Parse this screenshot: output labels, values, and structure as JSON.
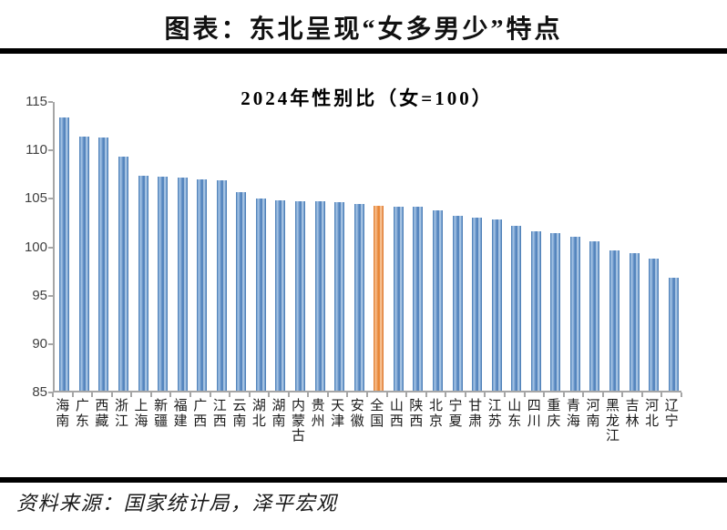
{
  "header": {
    "title": "图表：东北呈现“女多男少”特点"
  },
  "chart_data": {
    "type": "bar",
    "title": "2024年性别比（女=100）",
    "categories": [
      "海南",
      "广东",
      "西藏",
      "浙江",
      "上海",
      "新疆",
      "福建",
      "广西",
      "江西",
      "云南",
      "湖北",
      "湖南",
      "内蒙古",
      "贵州",
      "天津",
      "安徽",
      "全国",
      "山西",
      "陕西",
      "北京",
      "宁夏",
      "甘肃",
      "江苏",
      "山东",
      "四川",
      "重庆",
      "青海",
      "河南",
      "黑龙江",
      "吉林",
      "河北",
      "辽宁"
    ],
    "values": [
      113.2,
      111.2,
      111.1,
      109.2,
      107.2,
      107.1,
      107.0,
      106.8,
      106.7,
      105.5,
      104.8,
      104.7,
      104.6,
      104.6,
      104.5,
      104.3,
      104.1,
      104.0,
      104.0,
      103.6,
      103.1,
      102.9,
      102.7,
      102.0,
      101.5,
      101.3,
      100.9,
      100.4,
      99.5,
      99.2,
      98.6,
      96.7
    ],
    "highlight_category": "全国",
    "highlight_index": 16,
    "xlabel": "",
    "ylabel": "",
    "ylim": [
      85,
      115
    ],
    "yticks": [
      115,
      110,
      105,
      100,
      95,
      90,
      85
    ],
    "grid": "off",
    "legend": "none",
    "bar_color": "#4f81bd",
    "highlight_color": "#ed7d31",
    "axis_color": "#a6a6a6"
  },
  "footer": {
    "source": "资料来源：国家统计局，泽平宏观"
  }
}
